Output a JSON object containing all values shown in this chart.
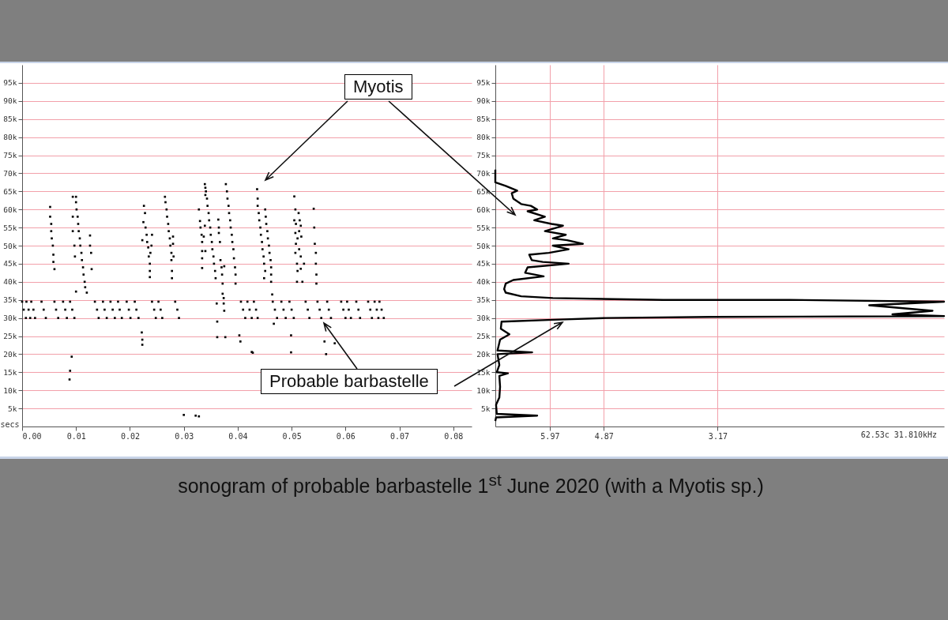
{
  "chart_data": [
    {
      "type": "scatter",
      "title": "sonogram of probable barbastelle 1$^{st}$ June 2020 (with a Myotis sp.)",
      "xlabel": "secs",
      "color": "#000000",
      "marker": "square",
      "grid": "y",
      "xlim": [
        0,
        0.0834
      ],
      "ylim": [
        0,
        100000
      ],
      "xticks": [
        {
          "value": 0,
          "label": "0.00"
        },
        {
          "value": 0.01,
          "label": "0.01"
        },
        {
          "value": 0.02,
          "label": "0.02"
        },
        {
          "value": 0.03,
          "label": "0.03"
        },
        {
          "value": 0.04,
          "label": "0.04"
        },
        {
          "value": 0.05,
          "label": "0.05"
        },
        {
          "value": 0.06,
          "label": "0.06"
        },
        {
          "value": 0.07,
          "label": "0.07"
        },
        {
          "value": 0.08,
          "label": "0.08"
        }
      ],
      "yticks": [
        {
          "value": 5000,
          "label": "5k"
        },
        {
          "value": 10000,
          "label": "10k"
        },
        {
          "value": 15000,
          "label": "15k"
        },
        {
          "value": 20000,
          "label": "20k"
        },
        {
          "value": 25000,
          "label": "25k"
        },
        {
          "value": 30000,
          "label": "30k"
        },
        {
          "value": 35000,
          "label": "35k"
        },
        {
          "value": 40000,
          "label": "40k"
        },
        {
          "value": 45000,
          "label": "45k"
        },
        {
          "value": 50000,
          "label": "50k"
        },
        {
          "value": 55000,
          "label": "55k"
        },
        {
          "value": 60000,
          "label": "60k"
        },
        {
          "value": 65000,
          "label": "65k"
        },
        {
          "value": 70000,
          "label": "70k"
        },
        {
          "value": 75000,
          "label": "75k"
        },
        {
          "value": 80000,
          "label": "80k"
        },
        {
          "value": 85000,
          "label": "85k"
        },
        {
          "value": 90000,
          "label": "90k"
        },
        {
          "value": 95000,
          "label": "95k"
        }
      ],
      "annotations": [
        "Myotis",
        "Probable barbastelle"
      ],
      "x": [
        0.0,
        0.0003,
        0.0007,
        0.0008,
        0.0012,
        0.0015,
        0.0017,
        0.0021,
        0.0024,
        0.0036,
        0.004,
        0.0044,
        0.006,
        0.0063,
        0.0067,
        0.0076,
        0.008,
        0.0083,
        0.0089,
        0.0093,
        0.0097,
        0.0135,
        0.0139,
        0.0142,
        0.015,
        0.0153,
        0.0157,
        0.0164,
        0.0168,
        0.0172,
        0.0178,
        0.0181,
        0.0185,
        0.0194,
        0.0198,
        0.0201,
        0.0209,
        0.0212,
        0.0216,
        0.0241,
        0.0245,
        0.0248,
        0.0253,
        0.0257,
        0.026,
        0.0284,
        0.0288,
        0.0291,
        0.0406,
        0.041,
        0.0414,
        0.0418,
        0.0422,
        0.0426,
        0.043,
        0.0434,
        0.0437,
        0.0465,
        0.0469,
        0.0473,
        0.0481,
        0.0485,
        0.0489,
        0.0496,
        0.05,
        0.0504,
        0.0526,
        0.053,
        0.0533,
        0.0548,
        0.0552,
        0.0555,
        0.0566,
        0.0569,
        0.0573,
        0.0592,
        0.0596,
        0.06,
        0.0603,
        0.0606,
        0.061,
        0.062,
        0.0624,
        0.0627,
        0.0642,
        0.0646,
        0.0649,
        0.0654,
        0.0658,
        0.0661,
        0.0663,
        0.0667,
        0.0671,
        0.0052,
        0.0052,
        0.0054,
        0.0054,
        0.0055,
        0.0057,
        0.0058,
        0.0058,
        0.006,
        0.0094,
        0.01,
        0.01,
        0.0101,
        0.0103,
        0.0104,
        0.0105,
        0.0107,
        0.0108,
        0.011,
        0.0111,
        0.0113,
        0.0114,
        0.0116,
        0.0117,
        0.012,
        0.0094,
        0.0094,
        0.0097,
        0.0098,
        0.01,
        0.0126,
        0.0126,
        0.0128,
        0.0129,
        0.0092,
        0.0089,
        0.0088,
        0.0226,
        0.0228,
        0.0225,
        0.0229,
        0.0231,
        0.0232,
        0.0234,
        0.0235,
        0.0237,
        0.0237,
        0.0237,
        0.0238,
        0.0241,
        0.024,
        0.0223,
        0.0222,
        0.0223,
        0.0223,
        0.0265,
        0.0266,
        0.0268,
        0.0269,
        0.0271,
        0.0272,
        0.0274,
        0.0275,
        0.0277,
        0.0277,
        0.0278,
        0.0278,
        0.028,
        0.028,
        0.0281,
        0.0328,
        0.033,
        0.0331,
        0.0333,
        0.0334,
        0.0334,
        0.0334,
        0.0334,
        0.0339,
        0.034,
        0.034,
        0.0341,
        0.0343,
        0.0344,
        0.0346,
        0.0347,
        0.0349,
        0.035,
        0.0352,
        0.0353,
        0.0355,
        0.0356,
        0.0358,
        0.0359,
        0.034,
        0.0337,
        0.0339,
        0.0361,
        0.0362,
        0.0362,
        0.0364,
        0.0365,
        0.0365,
        0.0367,
        0.0368,
        0.037,
        0.0371,
        0.0372,
        0.0372,
        0.0374,
        0.0374,
        0.0375,
        0.0377,
        0.0378,
        0.038,
        0.0381,
        0.0383,
        0.0384,
        0.0386,
        0.0387,
        0.0389,
        0.039,
        0.0392,
        0.0393,
        0.0395,
        0.0396,
        0.0396,
        0.0375,
        0.0436,
        0.0437,
        0.0437,
        0.0439,
        0.044,
        0.0442,
        0.0443,
        0.0445,
        0.0446,
        0.0448,
        0.0449,
        0.0451,
        0.0449,
        0.0451,
        0.0452,
        0.0453,
        0.0455,
        0.0456,
        0.0458,
        0.0459,
        0.0461,
        0.0462,
        0.0462,
        0.0462,
        0.0464,
        0.0505,
        0.0507,
        0.0513,
        0.0515,
        0.0505,
        0.0508,
        0.0517,
        0.0514,
        0.0507,
        0.0511,
        0.0518,
        0.0508,
        0.0514,
        0.0507,
        0.0517,
        0.051,
        0.0523,
        0.0511,
        0.0517,
        0.051,
        0.052,
        0.0541,
        0.0542,
        0.0543,
        0.0545,
        0.0545,
        0.0546,
        0.0546,
        0.0403,
        0.0405,
        0.0426,
        0.0428,
        0.0467,
        0.0499,
        0.0499,
        0.0561,
        0.0564,
        0.058,
        0.03,
        0.0322,
        0.0328
      ],
      "values": [
        34500,
        32300,
        30000,
        34500,
        32300,
        30000,
        34500,
        32300,
        30000,
        34500,
        32300,
        30000,
        34500,
        32300,
        30000,
        34500,
        32300,
        30000,
        34500,
        32300,
        30000,
        34500,
        32300,
        30000,
        34500,
        32300,
        30000,
        34500,
        32300,
        30000,
        34500,
        32300,
        30000,
        34500,
        32300,
        30000,
        34500,
        32300,
        30000,
        34500,
        32300,
        30000,
        34500,
        32300,
        30000,
        34500,
        32300,
        30000,
        34500,
        32300,
        30000,
        34500,
        32300,
        30000,
        34500,
        32300,
        30000,
        34500,
        32300,
        30000,
        34500,
        32300,
        30000,
        34500,
        32300,
        30000,
        34500,
        32300,
        30000,
        34500,
        32300,
        30000,
        34500,
        32300,
        30000,
        34500,
        32300,
        30000,
        34500,
        32300,
        30000,
        34500,
        32300,
        30000,
        34500,
        32300,
        30000,
        34500,
        32300,
        30000,
        34500,
        32300,
        30000,
        60700,
        58000,
        56000,
        54000,
        52000,
        50000,
        47500,
        45500,
        43500,
        63500,
        63500,
        62000,
        60000,
        58000,
        56000,
        54000,
        52000,
        50000,
        48000,
        46000,
        44000,
        42000,
        40000,
        38500,
        37000,
        58000,
        54000,
        50000,
        47000,
        37300,
        52800,
        50000,
        48000,
        43500,
        19300,
        15400,
        13000,
        61000,
        59000,
        56500,
        55000,
        53000,
        51000,
        49500,
        47000,
        45000,
        43000,
        41300,
        48000,
        53000,
        50000,
        51500,
        26000,
        24000,
        22600,
        63500,
        62000,
        60000,
        58000,
        56000,
        54000,
        52000,
        50000,
        48000,
        46000,
        43000,
        41000,
        52500,
        50500,
        47000,
        60000,
        56800,
        55000,
        53000,
        51000,
        48500,
        46500,
        43800,
        67000,
        66000,
        64000,
        65000,
        63000,
        61000,
        59000,
        57000,
        55000,
        53000,
        51000,
        49000,
        47000,
        45000,
        43000,
        41000,
        48500,
        52500,
        55500,
        34000,
        29000,
        24700,
        57200,
        55000,
        53500,
        51000,
        46000,
        44000,
        42000,
        39500,
        36700,
        35500,
        34000,
        32000,
        24700,
        67000,
        65000,
        63000,
        61000,
        59000,
        57000,
        55000,
        53000,
        51000,
        49000,
        46500,
        44000,
        42000,
        39500,
        44300,
        65600,
        63000,
        61000,
        59000,
        57000,
        55000,
        53000,
        51000,
        49000,
        47000,
        45000,
        43000,
        41000,
        60000,
        58000,
        56000,
        54000,
        52000,
        50000,
        48000,
        46000,
        44000,
        42000,
        40000,
        36500,
        63600,
        60000,
        59000,
        57000,
        57000,
        56000,
        55500,
        54000,
        53500,
        52000,
        52500,
        50500,
        49000,
        48000,
        47000,
        45000,
        45000,
        43000,
        43600,
        40000,
        40000,
        60200,
        55000,
        50500,
        48000,
        45000,
        42000,
        39500,
        25200,
        23500,
        20600,
        20400,
        28400,
        25200,
        20500,
        23500,
        20000,
        23000,
        3200,
        3000,
        2800
      ]
    },
    {
      "type": "line",
      "color": "#000000",
      "log": "x",
      "grid": true,
      "xlim": [
        7.33,
        1.35
      ],
      "ylim": [
        0,
        100000
      ],
      "xticks": [
        5.97,
        4.87,
        3.17
      ],
      "yticks": [
        {
          "value": 5000,
          "label": "5k"
        },
        {
          "value": 10000,
          "label": "10k"
        },
        {
          "value": 15000,
          "label": "15k"
        },
        {
          "value": 20000,
          "label": "20k"
        },
        {
          "value": 25000,
          "label": "25k"
        },
        {
          "value": 30000,
          "label": "30k"
        },
        {
          "value": 35000,
          "label": "35k"
        },
        {
          "value": 40000,
          "label": "40k"
        },
        {
          "value": 45000,
          "label": "45k"
        },
        {
          "value": 50000,
          "label": "50k"
        },
        {
          "value": 55000,
          "label": "55k"
        },
        {
          "value": 60000,
          "label": "60k"
        },
        {
          "value": 65000,
          "label": "65k"
        },
        {
          "value": 70000,
          "label": "70k"
        },
        {
          "value": 75000,
          "label": "75k"
        },
        {
          "value": 80000,
          "label": "80k"
        },
        {
          "value": 85000,
          "label": "85k"
        },
        {
          "value": 90000,
          "label": "90k"
        },
        {
          "value": 95000,
          "label": "95k"
        }
      ],
      "annotations": [
        "62.53c 31.810kHz"
      ],
      "x": [
        7.33,
        7.33,
        7.05,
        6.75,
        6.89,
        6.85,
        6.65,
        6.41,
        6.26,
        6.49,
        6.08,
        6.33,
        5.93,
        5.68,
        6.08,
        5.62,
        5.9,
        5.59,
        5.27,
        5.9,
        5.56,
        5.99,
        6.45,
        6.39,
        6.13,
        5.56,
        6.49,
        6.55,
        6.11,
        6.85,
        7.05,
        7.09,
        7.05,
        6.65,
        5.9,
        3.89,
        2.42,
        1.35,
        1.79,
        1.41,
        1.64,
        1.35,
        3.25,
        4.83,
        5.9,
        7.16,
        7.18,
        6.95,
        7.2,
        7.27,
        6.38,
        7.27,
        7.22,
        7.29,
        6.99,
        7.22,
        7.2,
        7.22,
        7.31,
        7.29,
        6.26,
        7.31,
        7.33
      ],
      "values": [
        71000,
        67500,
        66500,
        65200,
        64500,
        63000,
        61500,
        61000,
        60000,
        59500,
        58000,
        57000,
        56000,
        55500,
        54000,
        53000,
        52000,
        51500,
        50500,
        50000,
        49000,
        48000,
        47500,
        46000,
        45500,
        45000,
        44000,
        42500,
        41500,
        40500,
        39500,
        38000,
        37000,
        36000,
        35500,
        35000,
        35000,
        34500,
        33500,
        32000,
        31000,
        30500,
        30300,
        30000,
        29500,
        29000,
        27000,
        25500,
        24000,
        21000,
        20500,
        20000,
        17000,
        15000,
        14700,
        14000,
        11000,
        8000,
        6000,
        3500,
        3000,
        2500,
        1500
      ]
    }
  ]
}
